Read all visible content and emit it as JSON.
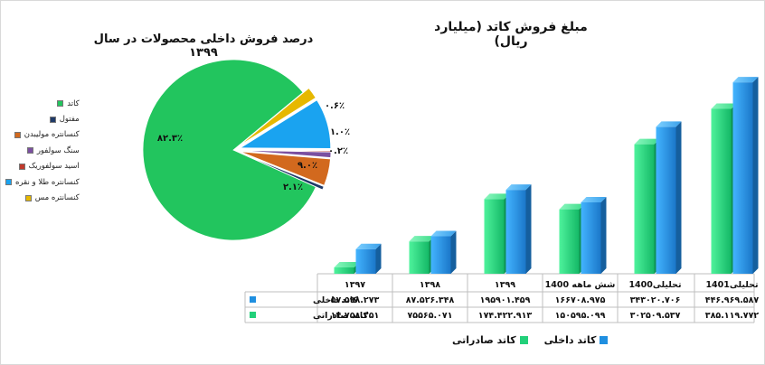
{
  "chart_data": [
    {
      "type": "pie",
      "title": "درصد فروش داخلی محصولات در سال ۱۳۹۹",
      "slices": [
        {
          "name": "کاتد",
          "value": 82.3,
          "label": "۸۲.۳٪",
          "color": "#22c55e"
        },
        {
          "name": "مفتول",
          "value": 0.6,
          "label": "۰.۶٪",
          "color": "#1f3a68"
        },
        {
          "name": "کنسانتره مولیبدن",
          "value": 4.8,
          "label": "۴.۸٪",
          "color": "#d2691e"
        },
        {
          "name": "سنگ سولفور",
          "value": 1.0,
          "label": "۱.۰٪",
          "color": "#7b4fa0"
        },
        {
          "name": "اسید سولفوریک",
          "value": 0.2,
          "label": "۰.۲٪",
          "color": "#c0392b"
        },
        {
          "name": "کنسانتره طلا و نقره",
          "value": 9.0,
          "label": "۹.۰٪",
          "color": "#1aa3f0"
        },
        {
          "name": "کنسانتره مس",
          "value": 2.1,
          "label": "۲.۱٪",
          "color": "#e6b800"
        }
      ]
    },
    {
      "type": "bar",
      "title": "مبلغ فروش کاتد (میلیارد ریال)",
      "categories": [
        "1397",
        "1398",
        "1399",
        "شش ماهه 1400",
        "تحلیلی 1400",
        "تحلیلی 1401"
      ],
      "category_labels": [
        "۱۳۹۷",
        "۱۳۹۸",
        "۱۳۹۹",
        "شش ماهه 1400",
        "تحلیلی1400",
        "تحلیلی1401"
      ],
      "series": [
        {
          "name": "کاتد داخلی",
          "color": "#1f8fe0",
          "values": [
            57598.273,
            87526.348,
            195901.459,
            166708.975,
            343020.706,
            446969.587
          ],
          "labels": [
            "۵۷.۵۹۸.۲۷۳",
            "۸۷.۵۲۶.۳۴۸",
            "۱۹۵۹۰۱.۴۵۹",
            "۱۶۶۷۰۸.۹۷۵",
            "۳۴۳۰۲۰.۷۰۶",
            "۴۴۶.۹۶۹.۵۸۷"
          ]
        },
        {
          "name": "کاتد صادراتی",
          "color": "#22d07a",
          "values": [
            14758.251,
            75565.071,
            174422.913,
            150595.099,
            302509.537,
            385119.772
          ],
          "labels": [
            "۱۴.۷۵۸.۲۵۱",
            "۷۵۵۶۵.۰۷۱",
            "۱۷۴.۴۲۲.۹۱۳",
            "۱۵۰۵۹۵.۰۹۹",
            "۳۰۲۵۰۹.۵۳۷",
            "۳۸۵.۱۱۹.۷۷۲"
          ]
        }
      ],
      "ylim": [
        0,
        500000
      ],
      "legend_position": "bottom"
    }
  ]
}
